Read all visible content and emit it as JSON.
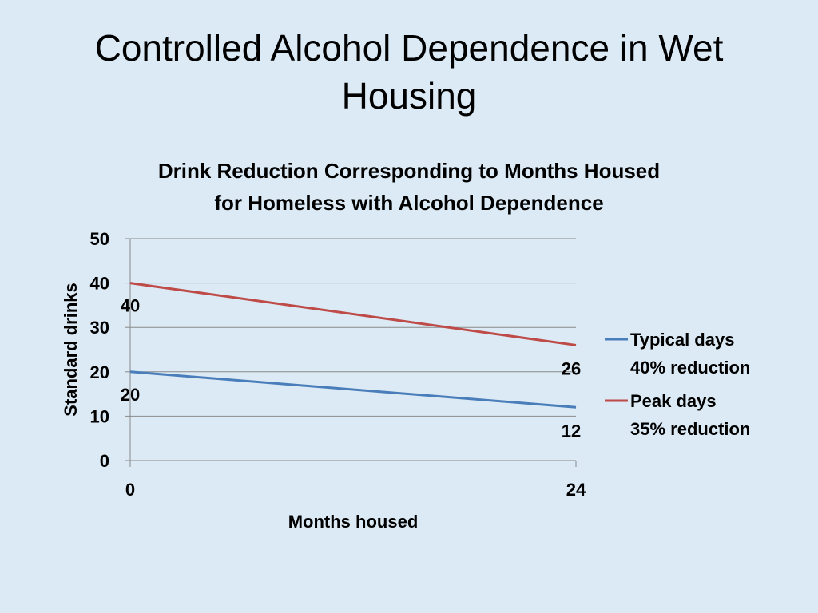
{
  "slide": {
    "title_line1": "Controlled Alcohol Dependence in Wet",
    "title_line2": "Housing"
  },
  "chart_data": {
    "type": "line",
    "title_line1": "Drink Reduction Corresponding to Months Housed",
    "title_line2": "for Homeless with Alcohol Dependence",
    "xlabel": "Months housed",
    "ylabel": "Standard drinks",
    "x": [
      0,
      24
    ],
    "xlim": [
      0,
      24
    ],
    "ylim": [
      0,
      50
    ],
    "yticks": [
      0,
      10,
      20,
      30,
      40,
      50
    ],
    "xticks": [
      0,
      24
    ],
    "grid": true,
    "legend_position": "right",
    "series": [
      {
        "name": "Typical days 40% reduction",
        "legend_lines": [
          "Typical days",
          "40% reduction"
        ],
        "values": [
          20,
          12
        ],
        "color": "#4a7ebb"
      },
      {
        "name": "Peak days 35% reduction",
        "legend_lines": [
          "Peak days",
          "35% reduction"
        ],
        "values": [
          40,
          26
        ],
        "color": "#be4b48"
      }
    ]
  }
}
